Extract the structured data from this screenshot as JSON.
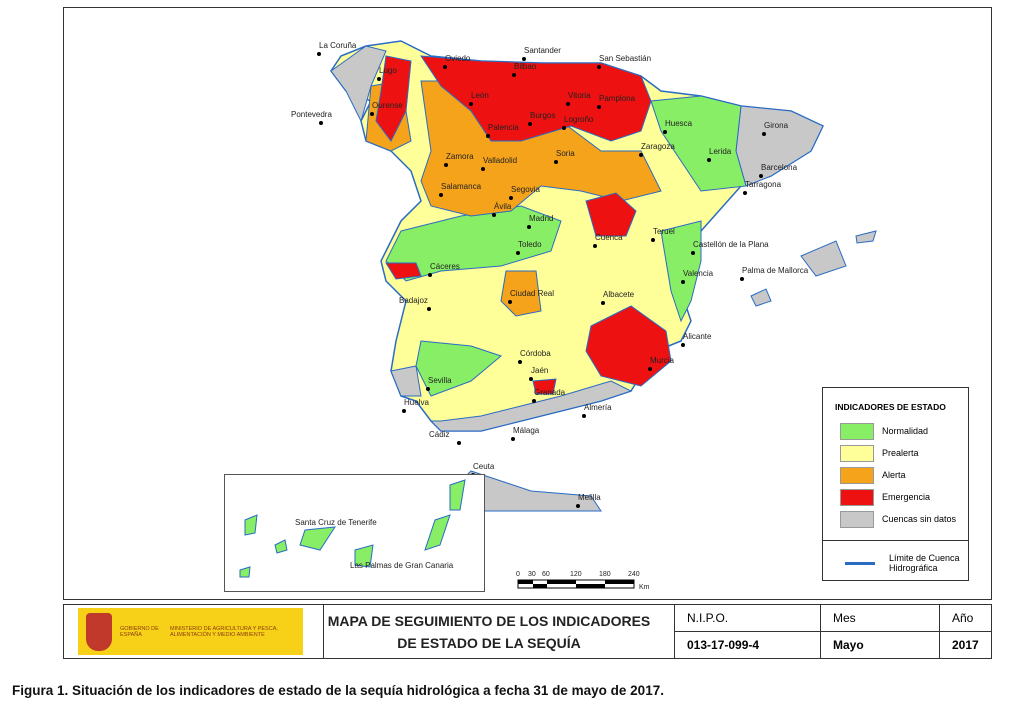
{
  "legend": {
    "title": "INDICADORES DE ESTADO",
    "items": [
      {
        "label": "Normalidad",
        "color": "#88ee66"
      },
      {
        "label": "Prealerta",
        "color": "#ffff99"
      },
      {
        "label": "Alerta",
        "color": "#f5a31a"
      },
      {
        "label": "Emergencia",
        "color": "#ee1111"
      },
      {
        "label": "Cuencas sin datos",
        "color": "#c8c8c8"
      }
    ],
    "line_label_1": "Límite de Cuenca",
    "line_label_2": "Hidrográfica"
  },
  "scale": {
    "ticks": [
      "0",
      "30",
      "60",
      "120",
      "180",
      "240"
    ],
    "unit": "Km"
  },
  "cities": [
    "La Coruña",
    "Santander",
    "San Sebastián",
    "Oviedo",
    "Bilbao",
    "Lugo",
    "Vitoria",
    "Pamplona",
    "León",
    "Ourense",
    "Pontevedra",
    "Burgos",
    "Logroño",
    "Huesca",
    "Girona",
    "Palencia",
    "Lerida",
    "Zaragoza",
    "Barcelona",
    "Zamora",
    "Valladolid",
    "Soria",
    "Tarragona",
    "Salamanca",
    "Segovia",
    "Ávila",
    "Madrid",
    "Teruel",
    "Cuenca",
    "Toledo",
    "Castellón de la Plana",
    "Cáceres",
    "Valencia",
    "Palma de Mallorca",
    "Badajoz",
    "Ciudad Real",
    "Albacete",
    "Alicante",
    "Córdoba",
    "Jaén",
    "Murcia",
    "Sevilla",
    "Granada",
    "Huelva",
    "Almería",
    "Cádiz",
    "Málaga",
    "Ceuta",
    "Melilla",
    "Santa Cruz de Tenerife",
    "Las Palmas de Gran Canaria"
  ],
  "footer": {
    "logo_line1": "GOBIERNO DE ESPAÑA",
    "logo_line2": "MINISTERIO DE AGRICULTURA Y PESCA, ALIMENTACIÓN Y MEDIO AMBIENTE",
    "title_line1": "MAPA DE SEGUIMIENTO DE LOS INDICADORES",
    "title_line2": "DE ESTADO DE LA SEQUÍA",
    "nipo_label": "N.I.P.O.",
    "nipo_value": "013-17-099-4",
    "mes_label": "Mes",
    "mes_value": "Mayo",
    "ano_label": "Año",
    "ano_value": "2017"
  },
  "caption": "Figura 1. Situación de los indicadores de estado de la sequía hidrológica a fecha 31 de mayo de 2017."
}
